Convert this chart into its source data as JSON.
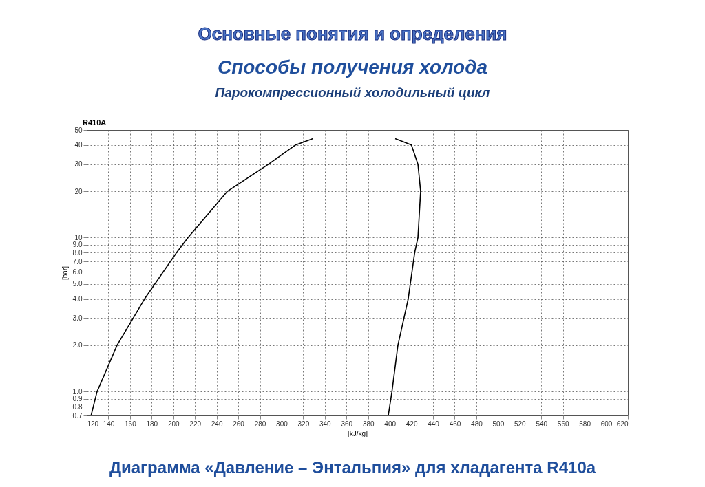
{
  "chart_data": {
    "type": "line",
    "title": "Способы получения холода",
    "subtitle": "Парокомпрессионный холодильный цикл",
    "xlabel": "[kJ/kg]",
    "ylabel": "[bar]",
    "annotations": [
      "Основные понятия и определения",
      "R410A",
      "Диаграмма «Давление – Энтальпия» для хладагента R410a"
    ],
    "log": true,
    "grid": true,
    "line_style": "solid",
    "marker": "none",
    "xlim": [
      120,
      620
    ],
    "xticks": [
      120,
      140,
      160,
      180,
      200,
      220,
      240,
      260,
      280,
      300,
      320,
      340,
      360,
      380,
      400,
      420,
      440,
      460,
      480,
      500,
      520,
      540,
      560,
      580,
      600,
      620
    ],
    "ylim": [
      0.7,
      50
    ],
    "yticks": [
      {
        "value": 0.7,
        "label": "0.7"
      },
      {
        "value": 0.8,
        "label": "0.8"
      },
      {
        "value": 0.9,
        "label": "0.9"
      },
      {
        "value": 1,
        "label": "1.0"
      },
      {
        "value": 2,
        "label": "2.0"
      },
      {
        "value": 3,
        "label": "3.0"
      },
      {
        "value": 4,
        "label": "4.0"
      },
      {
        "value": 5,
        "label": "5.0"
      },
      {
        "value": 6,
        "label": "6.0"
      },
      {
        "value": 7,
        "label": "7.0"
      },
      {
        "value": 8,
        "label": "8.0"
      },
      {
        "value": 9,
        "label": "9.0"
      },
      10,
      20,
      30,
      40,
      50
    ],
    "series": [
      {
        "color": "#000000",
        "x": [
          124,
          129.5,
          148,
          173.4,
          203,
          213.5,
          250,
          288,
          313,
          329
        ],
        "values": [
          0.7,
          1,
          2,
          4,
          8,
          10,
          20,
          30,
          40,
          44
        ]
      },
      {
        "color": "#000000",
        "x": [
          398.6,
          402,
          407.5,
          417,
          423,
          426,
          428.5,
          426,
          420,
          405
        ],
        "values": [
          0.7,
          1,
          2,
          4,
          8,
          10,
          20,
          30,
          40,
          44
        ]
      }
    ]
  }
}
